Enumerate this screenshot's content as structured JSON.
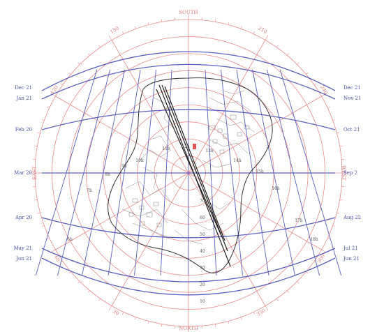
{
  "compass": {
    "south": "SOUTH",
    "north": "NORTH",
    "east": "EAST",
    "west": "WEST"
  },
  "azimuth_labels": [
    "150",
    "210",
    "120",
    "240",
    "60",
    "300",
    "30",
    "330"
  ],
  "altitude_labels": [
    "70",
    "60",
    "50",
    "40",
    "30",
    "20",
    "10"
  ],
  "dates_left": [
    "Dec 21",
    "Jan 21",
    "Feb 20",
    "Mar 20",
    "Apr 20",
    "May 21",
    "Jun 21"
  ],
  "dates_right": [
    "Dec 21",
    "Nov 21",
    "Oct 21",
    "Sep 2",
    "Aug 22",
    "Jul 21",
    "Jun 21"
  ],
  "hour_labels": [
    "6h",
    "7h",
    "8h",
    "9h",
    "10h",
    "11h",
    "12h",
    "13h",
    "14h",
    "15h",
    "16h",
    "17h",
    "18h"
  ],
  "colors": {
    "polar_grid": "#e88a8a",
    "sun_path": "#5a5fbf",
    "map_lines": "#333333"
  }
}
